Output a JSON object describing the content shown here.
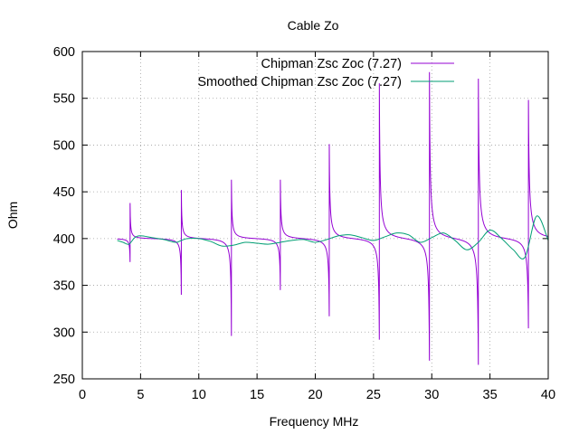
{
  "chart_data": {
    "type": "line",
    "title": "Cable Zo",
    "xlabel": "Frequency MHz",
    "ylabel": "Ohm",
    "xlim": [
      0,
      40
    ],
    "ylim": [
      250,
      600
    ],
    "xticks": [
      0,
      5,
      10,
      15,
      20,
      25,
      30,
      35,
      40
    ],
    "yticks": [
      250,
      300,
      350,
      400,
      450,
      500,
      550,
      600
    ],
    "grid": true,
    "legend_position": "top-right",
    "series": [
      {
        "name": "Chipman Zsc Zoc (7.27)",
        "color": "#9400d3",
        "resonances": [
          {
            "f": 4.1,
            "min": 375,
            "max": 438
          },
          {
            "f": 8.5,
            "min": 340,
            "max": 452
          },
          {
            "f": 12.8,
            "min": 296,
            "max": 463
          },
          {
            "f": 17.0,
            "min": 345,
            "max": 463
          },
          {
            "f": 21.2,
            "min": 317,
            "max": 501
          },
          {
            "f": 25.5,
            "min": 292,
            "max": 566
          },
          {
            "f": 29.8,
            "min": 270,
            "max": 578
          },
          {
            "f": 34.0,
            "min": 265,
            "max": 571
          },
          {
            "f": 38.3,
            "min": 304,
            "max": 548
          }
        ],
        "baseline": 400,
        "x_range": [
          3,
          40
        ]
      },
      {
        "name": "Smoothed Chipman Zsc Zoc (7.27)",
        "color": "#009e73",
        "x": [
          3,
          3.5,
          4,
          4.5,
          5,
          6,
          7,
          8,
          8.5,
          9,
          10,
          11,
          12,
          13,
          14,
          15,
          16,
          17,
          18,
          19,
          20,
          21,
          22,
          23,
          24,
          25,
          26,
          27,
          28,
          29,
          30,
          31,
          32,
          33,
          34,
          35,
          36,
          37,
          38,
          39,
          40
        ],
        "values": [
          398,
          396,
          394,
          401,
          403,
          401,
          399,
          396,
          398,
          400,
          400,
          397,
          392,
          393,
          396,
          395,
          394,
          396,
          398,
          399,
          396,
          399,
          403,
          404,
          401,
          398,
          402,
          406,
          404,
          396,
          401,
          406,
          398,
          388,
          396,
          409,
          400,
          388,
          380,
          424,
          398
        ]
      }
    ]
  }
}
